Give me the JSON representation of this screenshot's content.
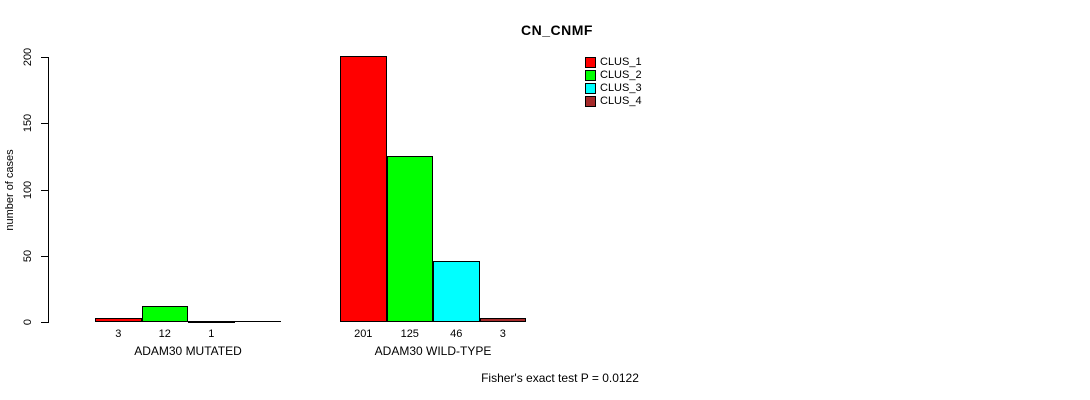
{
  "title": "CN_CNMF",
  "footer": "Fisher's exact test P = 0.0122",
  "chart_data": {
    "type": "bar",
    "title": "CN_CNMF",
    "ylabel": "number of cases",
    "xlabel": "",
    "ylim": [
      0,
      200
    ],
    "yticks": [
      0,
      50,
      100,
      150,
      200
    ],
    "grid": false,
    "legend_position": "top-right",
    "annotation": "Fisher's exact test P = 0.0122",
    "categories": [
      "ADAM30 MUTATED",
      "ADAM30 WILD-TYPE"
    ],
    "series": [
      {
        "name": "CLUS_1",
        "color": "#FF0000",
        "values": [
          3,
          201
        ]
      },
      {
        "name": "CLUS_2",
        "color": "#00FF00",
        "values": [
          12,
          125
        ]
      },
      {
        "name": "CLUS_3",
        "color": "#00FFFF",
        "values": [
          1,
          46
        ]
      },
      {
        "name": "CLUS_4",
        "color": "#A52A2A",
        "values": [
          0,
          3
        ]
      }
    ],
    "bar_value_labels": [
      [
        "3",
        "12",
        "1",
        ""
      ],
      [
        "201",
        "125",
        "46",
        "3"
      ]
    ]
  }
}
